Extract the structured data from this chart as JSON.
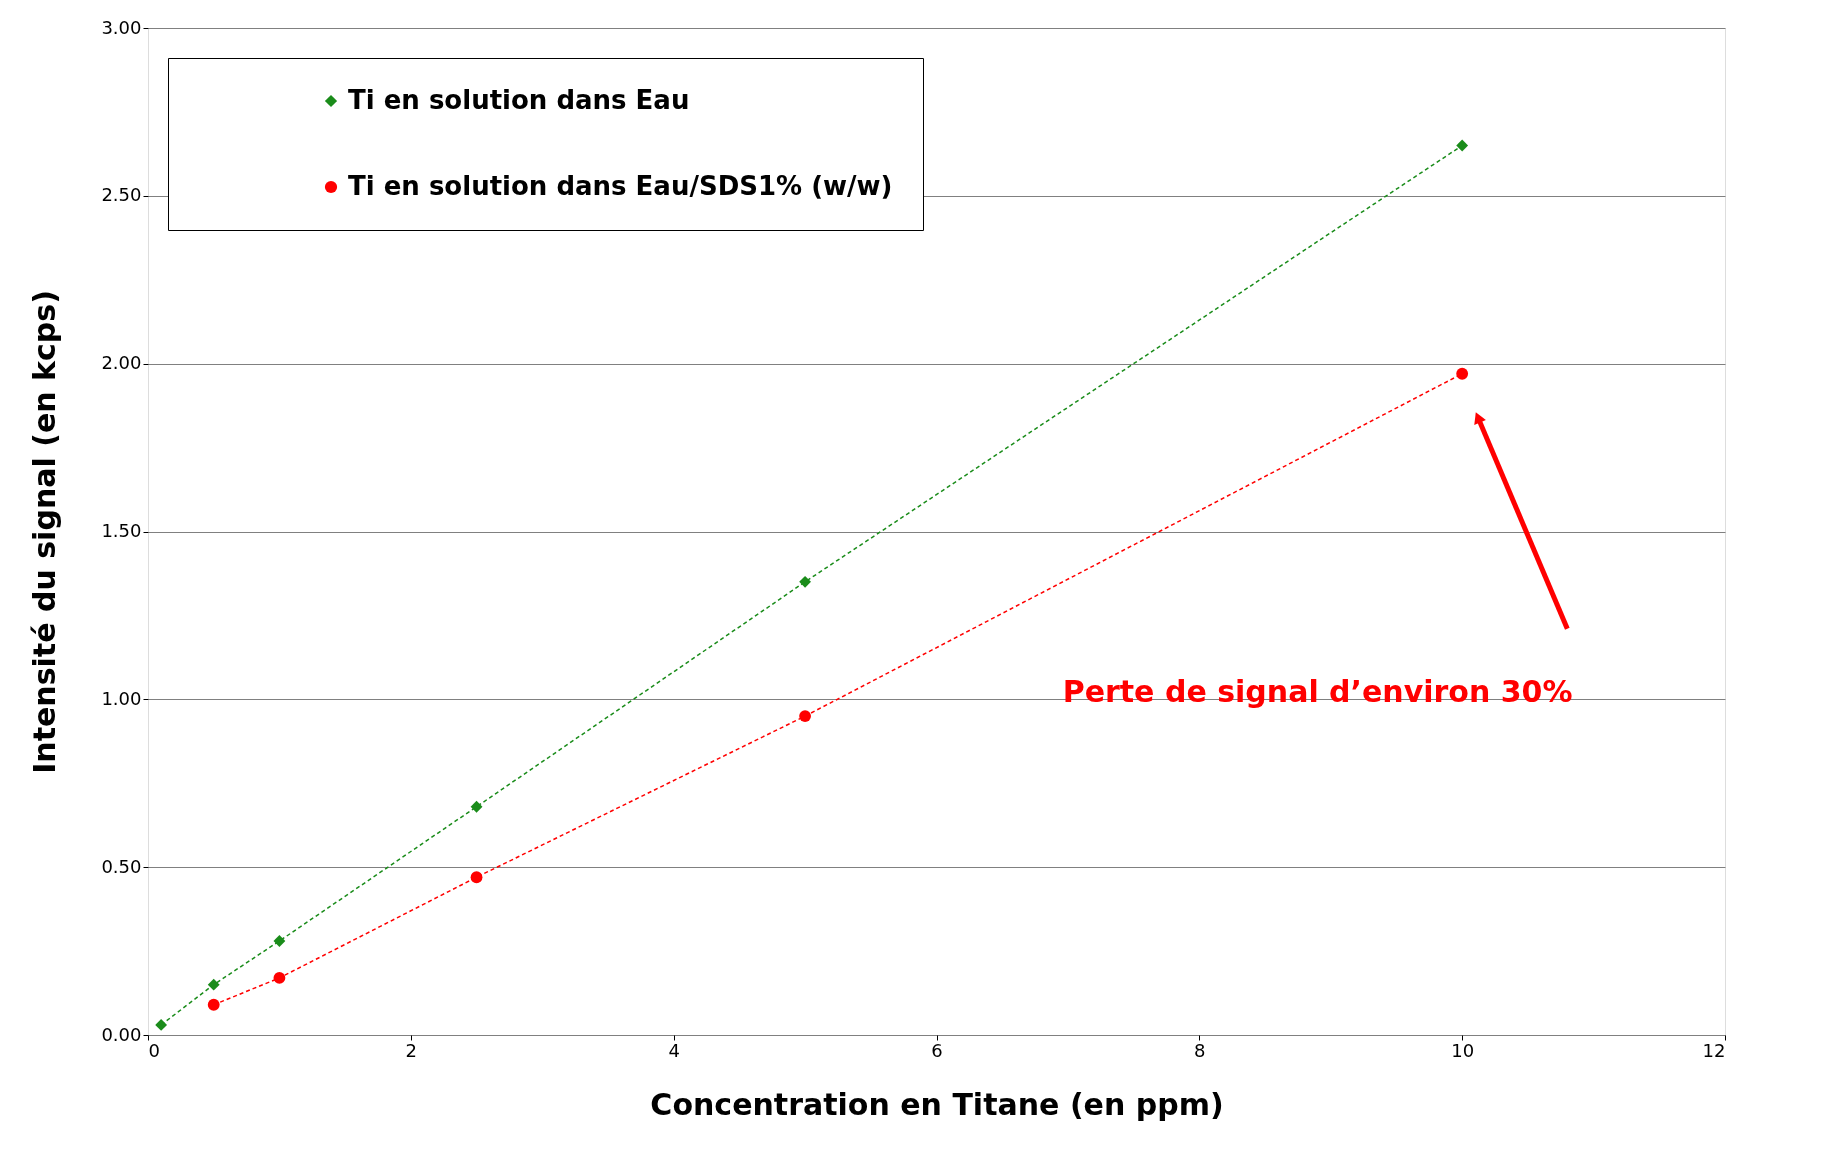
{
  "chart_data": {
    "type": "line",
    "xlabel": "Concentration en Titane (en ppm)",
    "ylabel": "Intensité du signal (en kcps)",
    "xlim": [
      0,
      12
    ],
    "xticks": [
      0,
      2,
      4,
      6,
      8,
      10,
      12
    ],
    "ylim": [
      0,
      3
    ],
    "yticks": [
      {
        "value": 0,
        "label": "0.00"
      },
      {
        "value": 0.5,
        "label": "0.50"
      },
      {
        "value": 1,
        "label": "1.00"
      },
      {
        "value": 1.5,
        "label": "1.50"
      },
      {
        "value": 2,
        "label": "2.00"
      },
      {
        "value": 2.5,
        "label": "2.50"
      },
      {
        "value": 3,
        "label": "3.00"
      }
    ],
    "grid": "y",
    "legend": "top left",
    "line_style": "dashed",
    "series": [
      {
        "name": "Ti en solution dans Eau",
        "color": "#1a8c1a",
        "marker": "diamond",
        "x": [
          0.1,
          0.5,
          1,
          2.5,
          5,
          10
        ],
        "values": [
          0.03,
          0.15,
          0.28,
          0.68,
          1.35,
          2.65
        ]
      },
      {
        "name": "Ti en solution dans Eau/SDS1% (w/w)",
        "color": "#ff0000",
        "marker": "circle",
        "x": [
          0.5,
          1,
          2.5,
          5,
          10
        ],
        "values": [
          0.09,
          0.17,
          0.47,
          0.95,
          1.97
        ]
      }
    ],
    "annotations": [
      "Perte de signal d’environ 30%"
    ]
  }
}
